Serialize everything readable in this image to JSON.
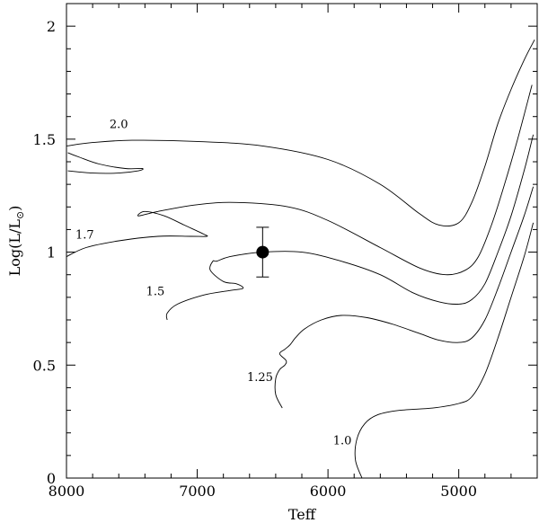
{
  "chart_data": {
    "type": "line",
    "xlabel": "Teff",
    "ylabel": "Log(L/L⊙)",
    "xlim": [
      8000,
      4400
    ],
    "ylim": [
      0,
      2.1
    ],
    "x_reversed": true,
    "xticks": [
      8000,
      7000,
      6000,
      5000
    ],
    "xtick_labels": [
      "8000",
      "7000",
      "6000",
      "5000"
    ],
    "yticks": [
      0,
      0.5,
      1,
      1.5,
      2
    ],
    "ytick_labels": [
      "0",
      "0.5",
      "1",
      "1.5",
      "2"
    ],
    "legend": "none",
    "grid": false,
    "series": [
      {
        "name": "2.0",
        "points": [
          [
            8000,
            1.47
          ],
          [
            7800,
            1.485
          ],
          [
            7500,
            1.495
          ],
          [
            7000,
            1.49
          ],
          [
            6500,
            1.47
          ],
          [
            6000,
            1.41
          ],
          [
            5600,
            1.3
          ],
          [
            5300,
            1.17
          ],
          [
            5150,
            1.12
          ],
          [
            5000,
            1.13
          ],
          [
            4900,
            1.22
          ],
          [
            4800,
            1.38
          ],
          [
            4700,
            1.57
          ],
          [
            4600,
            1.72
          ],
          [
            4500,
            1.85
          ],
          [
            4420,
            1.94
          ]
        ]
      },
      {
        "name": "2.0 (loop)",
        "points": [
          [
            7990,
            1.44
          ],
          [
            7900,
            1.42
          ],
          [
            7750,
            1.39
          ],
          [
            7550,
            1.37
          ],
          [
            7420,
            1.37
          ],
          [
            7450,
            1.36
          ],
          [
            7600,
            1.35
          ],
          [
            7800,
            1.35
          ],
          [
            7990,
            1.36
          ]
        ]
      },
      {
        "name": "1.7",
        "points": [
          [
            8000,
            0.98
          ],
          [
            7850,
            1.02
          ],
          [
            7600,
            1.05
          ],
          [
            7300,
            1.07
          ],
          [
            7050,
            1.07
          ],
          [
            6930,
            1.07
          ],
          [
            6950,
            1.08
          ],
          [
            7100,
            1.12
          ],
          [
            7250,
            1.16
          ],
          [
            7400,
            1.18
          ],
          [
            7450,
            1.16
          ],
          [
            7300,
            1.18
          ],
          [
            7000,
            1.21
          ],
          [
            6700,
            1.22
          ],
          [
            6300,
            1.2
          ],
          [
            6000,
            1.14
          ],
          [
            5600,
            1.02
          ],
          [
            5300,
            0.93
          ],
          [
            5100,
            0.9
          ],
          [
            4950,
            0.92
          ],
          [
            4850,
            0.98
          ],
          [
            4750,
            1.12
          ],
          [
            4650,
            1.3
          ],
          [
            4550,
            1.5
          ],
          [
            4440,
            1.74
          ]
        ]
      },
      {
        "name": "1.5",
        "points": [
          [
            7230,
            0.7
          ],
          [
            7230,
            0.73
          ],
          [
            7150,
            0.77
          ],
          [
            6950,
            0.81
          ],
          [
            6750,
            0.83
          ],
          [
            6650,
            0.84
          ],
          [
            6700,
            0.86
          ],
          [
            6800,
            0.87
          ],
          [
            6900,
            0.92
          ],
          [
            6880,
            0.96
          ],
          [
            6850,
            0.96
          ],
          [
            6750,
            0.98
          ],
          [
            6500,
            1.0
          ],
          [
            6200,
            1.0
          ],
          [
            5900,
            0.96
          ],
          [
            5600,
            0.9
          ],
          [
            5350,
            0.82
          ],
          [
            5150,
            0.78
          ],
          [
            5000,
            0.77
          ],
          [
            4900,
            0.79
          ],
          [
            4800,
            0.86
          ],
          [
            4700,
            1.0
          ],
          [
            4600,
            1.16
          ],
          [
            4500,
            1.36
          ],
          [
            4430,
            1.52
          ]
        ]
      },
      {
        "name": "1.25",
        "points": [
          [
            6350,
            0.31
          ],
          [
            6400,
            0.37
          ],
          [
            6400,
            0.44
          ],
          [
            6370,
            0.48
          ],
          [
            6330,
            0.5
          ],
          [
            6320,
            0.52
          ],
          [
            6370,
            0.55
          ],
          [
            6330,
            0.57
          ],
          [
            6290,
            0.59
          ],
          [
            6250,
            0.62
          ],
          [
            6180,
            0.66
          ],
          [
            6050,
            0.7
          ],
          [
            5900,
            0.72
          ],
          [
            5700,
            0.71
          ],
          [
            5500,
            0.68
          ],
          [
            5300,
            0.64
          ],
          [
            5150,
            0.61
          ],
          [
            5000,
            0.6
          ],
          [
            4900,
            0.62
          ],
          [
            4800,
            0.7
          ],
          [
            4700,
            0.84
          ],
          [
            4600,
            1.0
          ],
          [
            4500,
            1.16
          ],
          [
            4430,
            1.29
          ]
        ]
      },
      {
        "name": "1.0",
        "points": [
          [
            5740,
            0
          ],
          [
            5790,
            0.08
          ],
          [
            5780,
            0.17
          ],
          [
            5720,
            0.24
          ],
          [
            5620,
            0.28
          ],
          [
            5450,
            0.3
          ],
          [
            5200,
            0.31
          ],
          [
            5000,
            0.33
          ],
          [
            4900,
            0.36
          ],
          [
            4800,
            0.46
          ],
          [
            4700,
            0.62
          ],
          [
            4600,
            0.8
          ],
          [
            4500,
            0.98
          ],
          [
            4430,
            1.13
          ]
        ]
      }
    ],
    "track_labels": [
      {
        "text": "2.0",
        "x": 7600,
        "y": 1.55
      },
      {
        "text": "1.7",
        "x": 7860,
        "y": 1.06
      },
      {
        "text": "1.5",
        "x": 7320,
        "y": 0.81
      },
      {
        "text": "1.25",
        "x": 6520,
        "y": 0.43
      },
      {
        "text": "1.0",
        "x": 5890,
        "y": 0.15
      }
    ],
    "observed_point": {
      "x": 6500,
      "y": 1.0,
      "yerr_low": 0.89,
      "yerr_high": 1.11
    }
  }
}
